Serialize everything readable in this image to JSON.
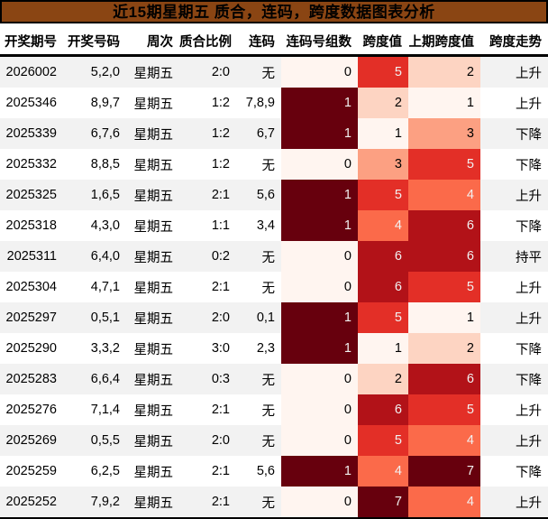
{
  "title": "近15期星期五 质合，连码，跨度数据图表分析",
  "chart_data": {
    "type": "table",
    "title": "近15期星期五 质合，连码，跨度数据图表分析",
    "columns": [
      "开奖期号",
      "开奖号码",
      "周次",
      "质合比例",
      "连码",
      "连码号组数",
      "跨度值",
      "上期跨度值",
      "跨度走势"
    ],
    "heatmap_columns": [
      "连码号组数",
      "跨度值",
      "上期跨度值"
    ],
    "colormap": "Reds",
    "rows": [
      {
        "period": "2026002",
        "numbers": "5,2,0",
        "week": "星期五",
        "ratio": "2:0",
        "lianma": "无",
        "groups": 0,
        "span": 5,
        "prev_span": 2,
        "trend": "上升"
      },
      {
        "period": "2025346",
        "numbers": "8,9,7",
        "week": "星期五",
        "ratio": "1:2",
        "lianma": "7,8,9",
        "groups": 1,
        "span": 2,
        "prev_span": 1,
        "trend": "上升"
      },
      {
        "period": "2025339",
        "numbers": "6,7,6",
        "week": "星期五",
        "ratio": "1:2",
        "lianma": "6,7",
        "groups": 1,
        "span": 1,
        "prev_span": 3,
        "trend": "下降"
      },
      {
        "period": "2025332",
        "numbers": "8,8,5",
        "week": "星期五",
        "ratio": "1:2",
        "lianma": "无",
        "groups": 0,
        "span": 3,
        "prev_span": 5,
        "trend": "下降"
      },
      {
        "period": "2025325",
        "numbers": "1,6,5",
        "week": "星期五",
        "ratio": "2:1",
        "lianma": "5,6",
        "groups": 1,
        "span": 5,
        "prev_span": 4,
        "trend": "上升"
      },
      {
        "period": "2025318",
        "numbers": "4,3,0",
        "week": "星期五",
        "ratio": "1:1",
        "lianma": "3,4",
        "groups": 1,
        "span": 4,
        "prev_span": 6,
        "trend": "下降"
      },
      {
        "period": "2025311",
        "numbers": "6,4,0",
        "week": "星期五",
        "ratio": "0:2",
        "lianma": "无",
        "groups": 0,
        "span": 6,
        "prev_span": 6,
        "trend": "持平"
      },
      {
        "period": "2025304",
        "numbers": "4,7,1",
        "week": "星期五",
        "ratio": "2:1",
        "lianma": "无",
        "groups": 0,
        "span": 6,
        "prev_span": 5,
        "trend": "上升"
      },
      {
        "period": "2025297",
        "numbers": "0,5,1",
        "week": "星期五",
        "ratio": "2:0",
        "lianma": "0,1",
        "groups": 1,
        "span": 5,
        "prev_span": 1,
        "trend": "上升"
      },
      {
        "period": "2025290",
        "numbers": "3,3,2",
        "week": "星期五",
        "ratio": "3:0",
        "lianma": "2,3",
        "groups": 1,
        "span": 1,
        "prev_span": 2,
        "trend": "下降"
      },
      {
        "period": "2025283",
        "numbers": "6,6,4",
        "week": "星期五",
        "ratio": "0:3",
        "lianma": "无",
        "groups": 0,
        "span": 2,
        "prev_span": 6,
        "trend": "下降"
      },
      {
        "period": "2025276",
        "numbers": "7,1,4",
        "week": "星期五",
        "ratio": "2:1",
        "lianma": "无",
        "groups": 0,
        "span": 6,
        "prev_span": 5,
        "trend": "上升"
      },
      {
        "period": "2025269",
        "numbers": "0,5,5",
        "week": "星期五",
        "ratio": "2:0",
        "lianma": "无",
        "groups": 0,
        "span": 5,
        "prev_span": 4,
        "trend": "上升"
      },
      {
        "period": "2025259",
        "numbers": "6,2,5",
        "week": "星期五",
        "ratio": "2:1",
        "lianma": "5,6",
        "groups": 1,
        "span": 4,
        "prev_span": 7,
        "trend": "下降"
      },
      {
        "period": "2025252",
        "numbers": "7,9,2",
        "week": "星期五",
        "ratio": "2:1",
        "lianma": "无",
        "groups": 0,
        "span": 7,
        "prev_span": 4,
        "trend": "上升"
      }
    ]
  },
  "colors": {
    "title_bg": "#8a4513",
    "title_text": "#000000",
    "row_stripe": "#f2f2f2",
    "header_border": "#000000",
    "heat_groups": {
      "0": {
        "bg": "#fff5f0",
        "fg": "#000000"
      },
      "1": {
        "bg": "#67000d",
        "fg": "#f1f1f1"
      }
    },
    "heat_span": {
      "1": {
        "bg": "#fff5f0",
        "fg": "#000000"
      },
      "2": {
        "bg": "#fdd4c2",
        "fg": "#000000"
      },
      "3": {
        "bg": "#fca082",
        "fg": "#000000"
      },
      "4": {
        "bg": "#fb6a4a",
        "fg": "#f1f1f1"
      },
      "5": {
        "bg": "#e32f27",
        "fg": "#f1f1f1"
      },
      "6": {
        "bg": "#b21218",
        "fg": "#f1f1f1"
      },
      "7": {
        "bg": "#67000d",
        "fg": "#f1f1f1"
      }
    }
  }
}
